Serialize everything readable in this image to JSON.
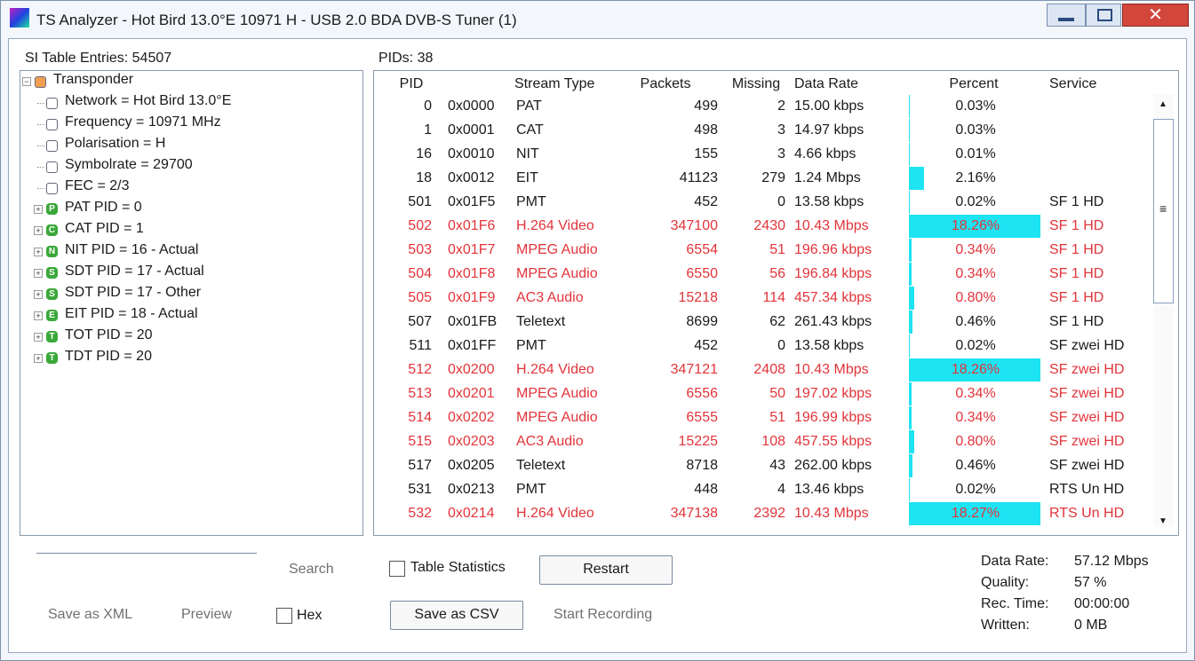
{
  "window": {
    "title": "TS Analyzer - Hot Bird 13.0°E 10971 H - USB 2.0 BDA DVB-S Tuner (1)"
  },
  "tree": {
    "label": "SI Table Entries: 54507",
    "items": [
      {
        "label": "Transponder",
        "level": 0,
        "expandable": true,
        "icon_color": "#f0a050"
      },
      {
        "label": "Network = Hot Bird 13.0°E",
        "level": 1
      },
      {
        "label": "Frequency = 10971 MHz",
        "level": 1
      },
      {
        "label": "Polarisation = H",
        "level": 1
      },
      {
        "label": "Symbolrate = 29700",
        "level": 1
      },
      {
        "label": "FEC = 2/3",
        "level": 1
      },
      {
        "label": "PAT PID = 0",
        "level": 1,
        "expandable": true,
        "icon": "P"
      },
      {
        "label": "CAT PID = 1",
        "level": 1,
        "expandable": true,
        "icon": "C"
      },
      {
        "label": "NIT PID = 16 - Actual",
        "level": 1,
        "expandable": true,
        "icon": "N"
      },
      {
        "label": "SDT PID = 17 - Actual",
        "level": 1,
        "expandable": true,
        "icon": "S"
      },
      {
        "label": "SDT PID = 17 - Other",
        "level": 1,
        "expandable": true,
        "icon": "S"
      },
      {
        "label": "EIT PID = 18 - Actual",
        "level": 1,
        "expandable": true,
        "icon": "E"
      },
      {
        "label": "TOT PID = 20",
        "level": 1,
        "expandable": true,
        "icon": "T"
      },
      {
        "label": "TDT PID = 20",
        "level": 1,
        "expandable": true,
        "icon": "T"
      }
    ]
  },
  "table": {
    "label": "PIDs: 38",
    "headers": [
      "PID",
      "Stream Type",
      "Packets",
      "Missing",
      "Data Rate",
      "Percent",
      "Service"
    ],
    "bar_color": "#1ee3f2",
    "alert_color": "#e2343a",
    "rows": [
      {
        "pid": 0,
        "hex": "0x0000",
        "type": "PAT",
        "packets": 499,
        "missing": 2,
        "rate": "15.00 kbps",
        "percent": {
          "value": 0.03,
          "label": "0.03%"
        }
      },
      {
        "pid": 1,
        "hex": "0x0001",
        "type": "CAT",
        "packets": 498,
        "missing": 3,
        "rate": "14.97 kbps",
        "percent": {
          "value": 0.03,
          "label": "0.03%"
        }
      },
      {
        "pid": 16,
        "hex": "0x0010",
        "type": "NIT",
        "packets": 155,
        "missing": 3,
        "rate": "4.66 kbps",
        "percent": {
          "value": 0.01,
          "label": "0.01%"
        }
      },
      {
        "pid": 18,
        "hex": "0x0012",
        "type": "EIT",
        "packets": 41123,
        "missing": 279,
        "rate": "1.24 Mbps",
        "percent": {
          "value": 2.16,
          "label": "2.16%"
        }
      },
      {
        "pid": 501,
        "hex": "0x01F5",
        "type": "PMT",
        "packets": 452,
        "missing": 0,
        "rate": "13.58 kbps",
        "percent": {
          "value": 0.02,
          "label": "0.02%"
        },
        "service": "SF 1 HD"
      },
      {
        "pid": 502,
        "hex": "0x01F6",
        "type": "H.264 Video",
        "packets": 347100,
        "missing": 2430,
        "rate": "10.43 Mbps",
        "percent": {
          "value": 18.26,
          "label": "18.26%"
        },
        "service": "SF 1 HD",
        "alert": true
      },
      {
        "pid": 503,
        "hex": "0x01F7",
        "type": "MPEG Audio",
        "packets": 6554,
        "missing": 51,
        "rate": "196.96 kbps",
        "percent": {
          "value": 0.34,
          "label": "0.34%"
        },
        "service": "SF 1 HD",
        "alert": true
      },
      {
        "pid": 504,
        "hex": "0x01F8",
        "type": "MPEG Audio",
        "packets": 6550,
        "missing": 56,
        "rate": "196.84 kbps",
        "percent": {
          "value": 0.34,
          "label": "0.34%"
        },
        "service": "SF 1 HD",
        "alert": true
      },
      {
        "pid": 505,
        "hex": "0x01F9",
        "type": "AC3 Audio",
        "packets": 15218,
        "missing": 114,
        "rate": "457.34 kbps",
        "percent": {
          "value": 0.8,
          "label": "0.80%"
        },
        "service": "SF 1 HD",
        "alert": true
      },
      {
        "pid": 507,
        "hex": "0x01FB",
        "type": "Teletext",
        "packets": 8699,
        "missing": 62,
        "rate": "261.43 kbps",
        "percent": {
          "value": 0.46,
          "label": "0.46%"
        },
        "service": "SF 1 HD"
      },
      {
        "pid": 511,
        "hex": "0x01FF",
        "type": "PMT",
        "packets": 452,
        "missing": 0,
        "rate": "13.58 kbps",
        "percent": {
          "value": 0.02,
          "label": "0.02%"
        },
        "service": "SF zwei HD"
      },
      {
        "pid": 512,
        "hex": "0x0200",
        "type": "H.264 Video",
        "packets": 347121,
        "missing": 2408,
        "rate": "10.43 Mbps",
        "percent": {
          "value": 18.26,
          "label": "18.26%"
        },
        "service": "SF zwei HD",
        "alert": true
      },
      {
        "pid": 513,
        "hex": "0x0201",
        "type": "MPEG Audio",
        "packets": 6556,
        "missing": 50,
        "rate": "197.02 kbps",
        "percent": {
          "value": 0.34,
          "label": "0.34%"
        },
        "service": "SF zwei HD",
        "alert": true
      },
      {
        "pid": 514,
        "hex": "0x0202",
        "type": "MPEG Audio",
        "packets": 6555,
        "missing": 51,
        "rate": "196.99 kbps",
        "percent": {
          "value": 0.34,
          "label": "0.34%"
        },
        "service": "SF zwei HD",
        "alert": true
      },
      {
        "pid": 515,
        "hex": "0x0203",
        "type": "AC3 Audio",
        "packets": 15225,
        "missing": 108,
        "rate": "457.55 kbps",
        "percent": {
          "value": 0.8,
          "label": "0.80%"
        },
        "service": "SF zwei HD",
        "alert": true
      },
      {
        "pid": 517,
        "hex": "0x0205",
        "type": "Teletext",
        "packets": 8718,
        "missing": 43,
        "rate": "262.00 kbps",
        "percent": {
          "value": 0.46,
          "label": "0.46%"
        },
        "service": "SF zwei HD"
      },
      {
        "pid": 531,
        "hex": "0x0213",
        "type": "PMT",
        "packets": 448,
        "missing": 4,
        "rate": "13.46 kbps",
        "percent": {
          "value": 0.02,
          "label": "0.02%"
        },
        "service": "RTS Un HD"
      },
      {
        "pid": 532,
        "hex": "0x0214",
        "type": "H.264 Video",
        "packets": 347138,
        "missing": 2392,
        "rate": "10.43 Mbps",
        "percent": {
          "value": 18.27,
          "label": "18.27%"
        },
        "service": "RTS Un HD",
        "alert": true
      }
    ]
  },
  "controls": {
    "search": "Search",
    "table_statistics": "Table Statistics",
    "restart": "Restart",
    "save_xml": "Save as XML",
    "preview": "Preview",
    "hex": "Hex",
    "save_csv": "Save as CSV",
    "start_recording": "Start Recording"
  },
  "stats": [
    {
      "label": "Data Rate:",
      "value": "57.12 Mbps"
    },
    {
      "label": "Quality:",
      "value": "57 %"
    },
    {
      "label": "Rec. Time:",
      "value": "00:00:00"
    },
    {
      "label": "Written:",
      "value": "0 MB"
    }
  ]
}
